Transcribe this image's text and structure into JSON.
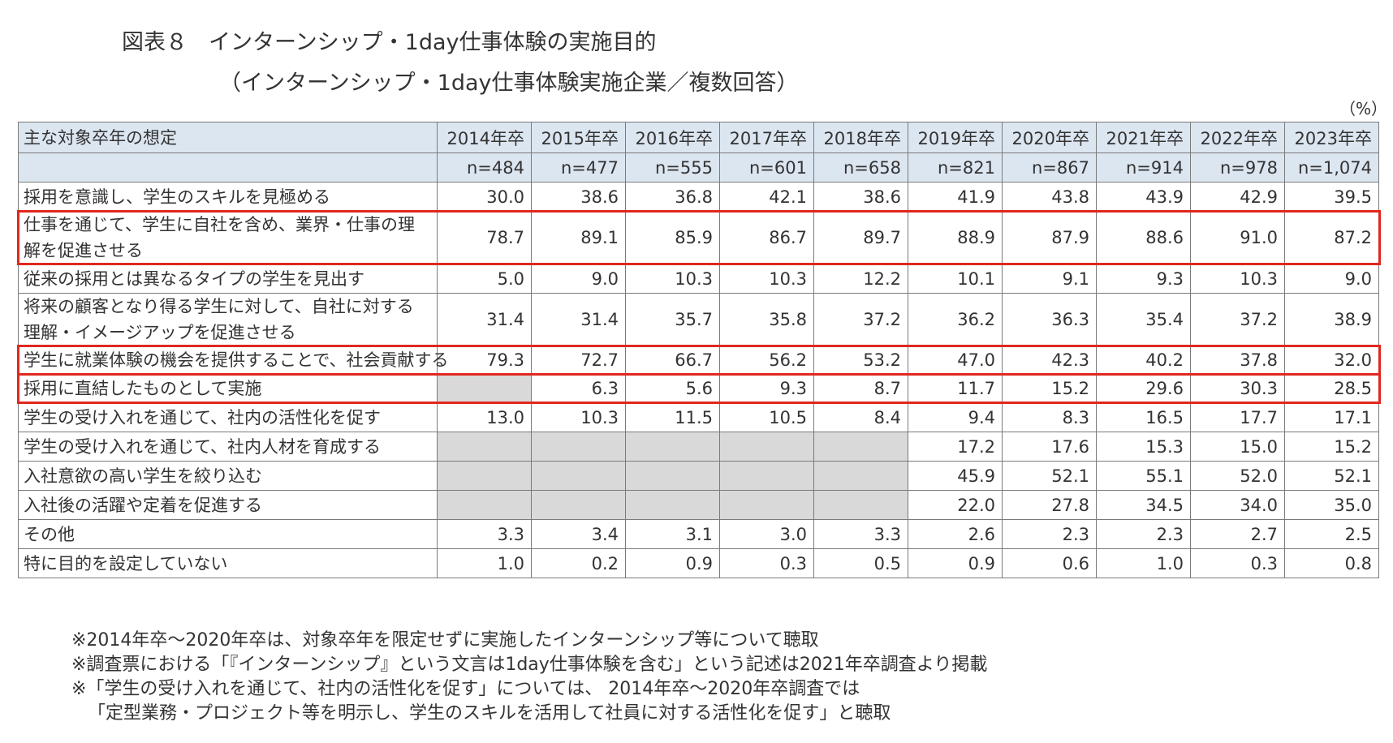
{
  "title": {
    "label": "図表８",
    "text": "インターンシップ・1day仕事体験の実施目的",
    "subtitle": "（インターンシップ・1day仕事体験実施企業／複数回答）"
  },
  "unit": "（%）",
  "table": {
    "header_label": "主な対象卒年の想定",
    "years": [
      "2014年卒",
      "2015年卒",
      "2016年卒",
      "2017年卒",
      "2018年卒",
      "2019年卒",
      "2020年卒",
      "2021年卒",
      "2022年卒",
      "2023年卒"
    ],
    "n_values": [
      "n=484",
      "n=477",
      "n=555",
      "n=601",
      "n=658",
      "n=821",
      "n=867",
      "n=914",
      "n=978",
      "n=1,074"
    ],
    "rows": [
      {
        "label": "採用を意識し、学生のスキルを見極める",
        "values": [
          "30.0",
          "38.6",
          "36.8",
          "42.1",
          "38.6",
          "41.9",
          "43.8",
          "43.9",
          "42.9",
          "39.5"
        ]
      },
      {
        "label": "仕事を通じて、学生に自社を含め、業界・仕事の理解を促進させる",
        "values": [
          "78.7",
          "89.1",
          "85.9",
          "86.7",
          "89.7",
          "88.9",
          "87.9",
          "88.6",
          "91.0",
          "87.2"
        ],
        "highlight": true
      },
      {
        "label": "従来の採用とは異なるタイプの学生を見出す",
        "values": [
          "5.0",
          "9.0",
          "10.3",
          "10.3",
          "12.2",
          "10.1",
          "9.1",
          "9.3",
          "10.3",
          "9.0"
        ]
      },
      {
        "label": "将来の顧客となり得る学生に対して、自社に対する理解・イメージアップを促進させる",
        "values": [
          "31.4",
          "31.4",
          "35.7",
          "35.8",
          "37.2",
          "36.2",
          "36.3",
          "35.4",
          "37.2",
          "38.9"
        ]
      },
      {
        "label": "学生に就業体験の機会を提供することで、社会貢献する",
        "values": [
          "79.3",
          "72.7",
          "66.7",
          "56.2",
          "53.2",
          "47.0",
          "42.3",
          "40.2",
          "37.8",
          "32.0"
        ],
        "highlight": true
      },
      {
        "label": "採用に直結したものとして実施",
        "values": [
          "",
          "6.3",
          "5.6",
          "9.3",
          "8.7",
          "11.7",
          "15.2",
          "29.6",
          "30.3",
          "28.5"
        ],
        "highlight": true
      },
      {
        "label": "学生の受け入れを通じて、社内の活性化を促す",
        "values": [
          "13.0",
          "10.3",
          "11.5",
          "10.5",
          "8.4",
          "9.4",
          "8.3",
          "16.5",
          "17.7",
          "17.1"
        ]
      },
      {
        "label": "学生の受け入れを通じて、社内人材を育成する",
        "values": [
          "",
          "",
          "",
          "",
          "",
          "17.2",
          "17.6",
          "15.3",
          "15.0",
          "15.2"
        ]
      },
      {
        "label": "入社意欲の高い学生を絞り込む",
        "values": [
          "",
          "",
          "",
          "",
          "",
          "45.9",
          "52.1",
          "55.1",
          "52.0",
          "52.1"
        ]
      },
      {
        "label": "入社後の活躍や定着を促進する",
        "values": [
          "",
          "",
          "",
          "",
          "",
          "22.0",
          "27.8",
          "34.5",
          "34.0",
          "35.0"
        ]
      },
      {
        "label": "その他",
        "values": [
          "3.3",
          "3.4",
          "3.1",
          "3.0",
          "3.3",
          "2.6",
          "2.3",
          "2.3",
          "2.7",
          "2.5"
        ]
      },
      {
        "label": "特に目的を設定していない",
        "values": [
          "1.0",
          "0.2",
          "0.9",
          "0.3",
          "0.5",
          "0.9",
          "0.6",
          "1.0",
          "0.3",
          "0.8"
        ]
      }
    ]
  },
  "notes": [
    "※2014年卒～2020年卒は、対象卒年を限定せずに実施したインターンシップ等について聴取",
    "※調査票における「『インターンシップ』という文言は1day仕事体験を含む」という記述は2021年卒調査より掲載",
    "※「学生の受け入れを通じて、社内の活性化を促す」については、 2014年卒～2020年卒調査では",
    "「定型業務・プロジェクト等を明示し、学生のスキルを活用して社員に対する活性化を促す」と聴取"
  ],
  "colors": {
    "header_bg": "#dce6f1",
    "na_bg": "#d9d9d9",
    "highlight": "#e0281e"
  }
}
